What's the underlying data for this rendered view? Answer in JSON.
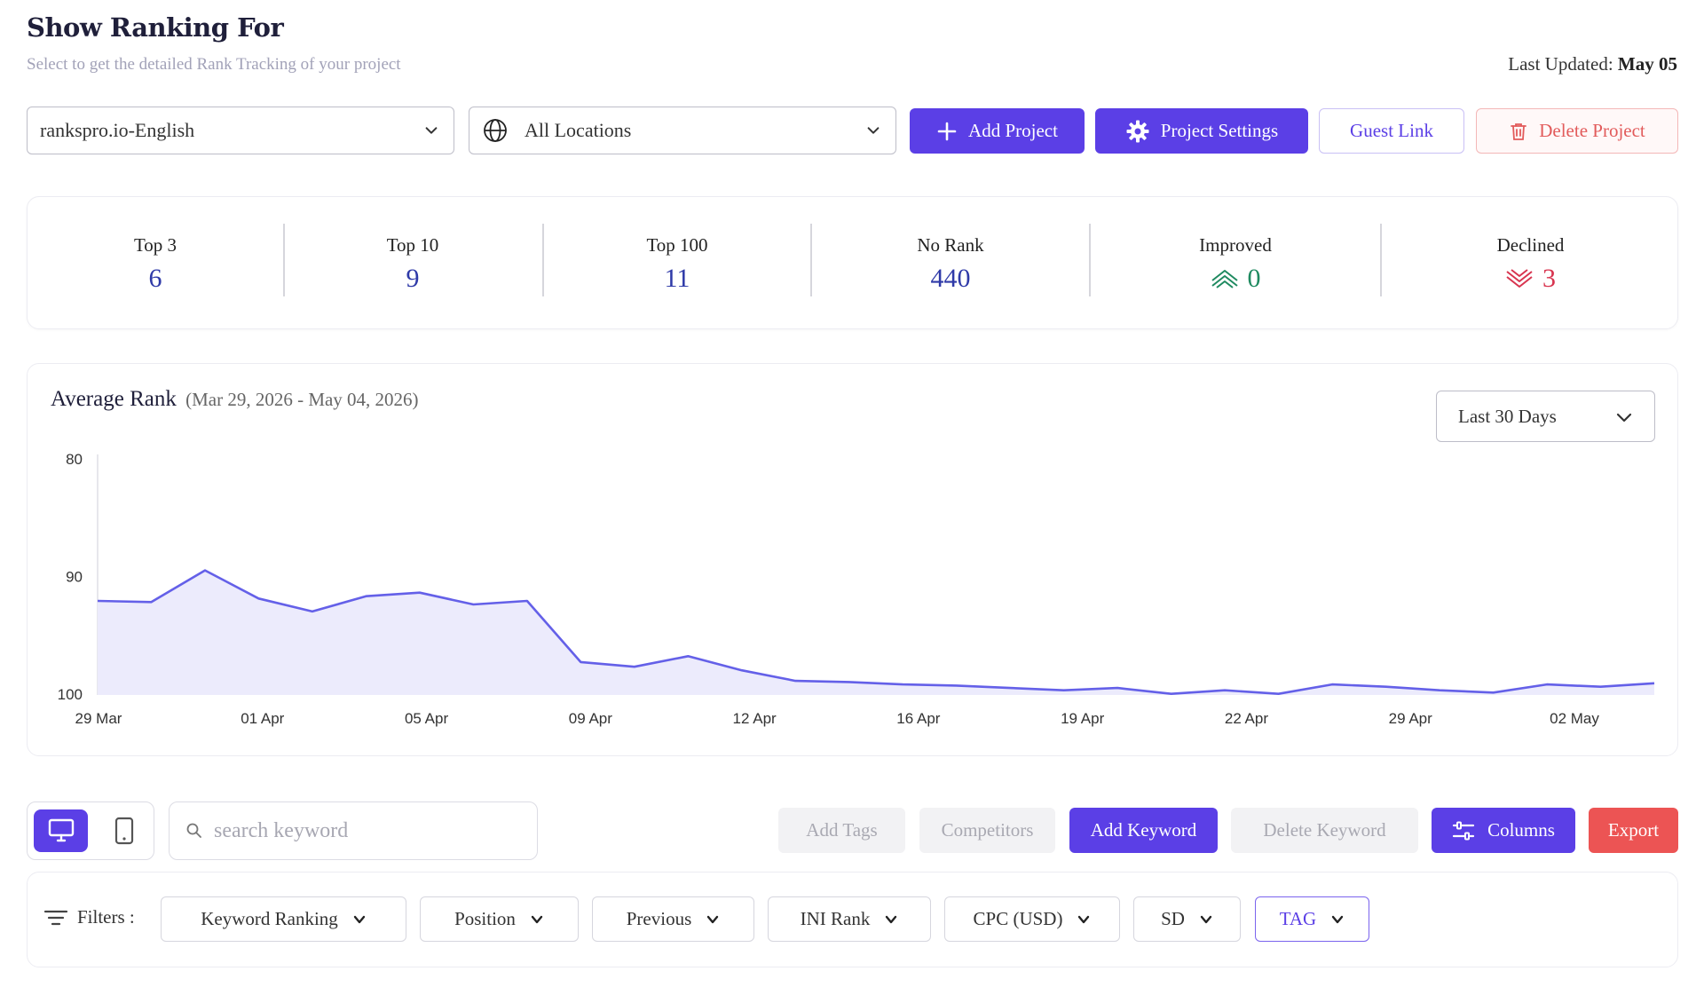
{
  "header": {
    "title": "Show Ranking For",
    "subtitle": "Select to get the detailed Rank Tracking of your project",
    "last_updated_label": "Last Updated:",
    "last_updated_value": "May 05"
  },
  "selectors": {
    "project": "rankspro.io-English",
    "location": "All Locations"
  },
  "actions": {
    "add_project": "Add Project",
    "project_settings": "Project Settings",
    "guest_link": "Guest Link",
    "delete_project": "Delete Project"
  },
  "stats": [
    {
      "label": "Top 3",
      "value": "6"
    },
    {
      "label": "Top 10",
      "value": "9"
    },
    {
      "label": "Top 100",
      "value": "11"
    },
    {
      "label": "No Rank",
      "value": "440"
    },
    {
      "label": "Improved",
      "value": "0"
    },
    {
      "label": "Declined",
      "value": "3"
    }
  ],
  "chart": {
    "title": "Average Rank",
    "range": "(Mar 29, 2026 - May 04, 2026)",
    "range_select": "Last 30 Days"
  },
  "chart_data": {
    "type": "area",
    "title": "Average Rank",
    "ylim": [
      80,
      100
    ],
    "y_inverted": true,
    "y_ticks": [
      80,
      90,
      100
    ],
    "x_tick_labels": [
      "29 Mar",
      "01 Apr",
      "05 Apr",
      "09 Apr",
      "12 Apr",
      "16 Apr",
      "19 Apr",
      "22 Apr",
      "29 Apr",
      "02 May"
    ],
    "values": [
      92.0,
      92.1,
      89.4,
      91.8,
      92.9,
      91.6,
      91.3,
      92.3,
      92.0,
      97.2,
      97.6,
      96.7,
      97.9,
      98.8,
      98.9,
      99.1,
      99.2,
      99.4,
      99.6,
      99.4,
      99.9,
      99.6,
      99.9,
      99.1,
      99.3,
      99.6,
      99.8,
      99.1,
      99.3,
      99.0
    ]
  },
  "icon_colors": {
    "accent": "#5b3fe6",
    "improved": "#1f8a60",
    "declined": "#d8344f",
    "export": "#ec5454"
  },
  "toolbar": {
    "search_placeholder": "search keyword",
    "add_tags": "Add Tags",
    "competitors": "Competitors",
    "add_keyword": "Add Keyword",
    "delete_keyword": "Delete Keyword",
    "columns": "Columns",
    "export": "Export"
  },
  "filters": {
    "label": "Filters :",
    "items": [
      "Keyword Ranking",
      "Position",
      "Previous",
      "INI Rank",
      "CPC (USD)",
      "SD",
      "TAG"
    ]
  }
}
